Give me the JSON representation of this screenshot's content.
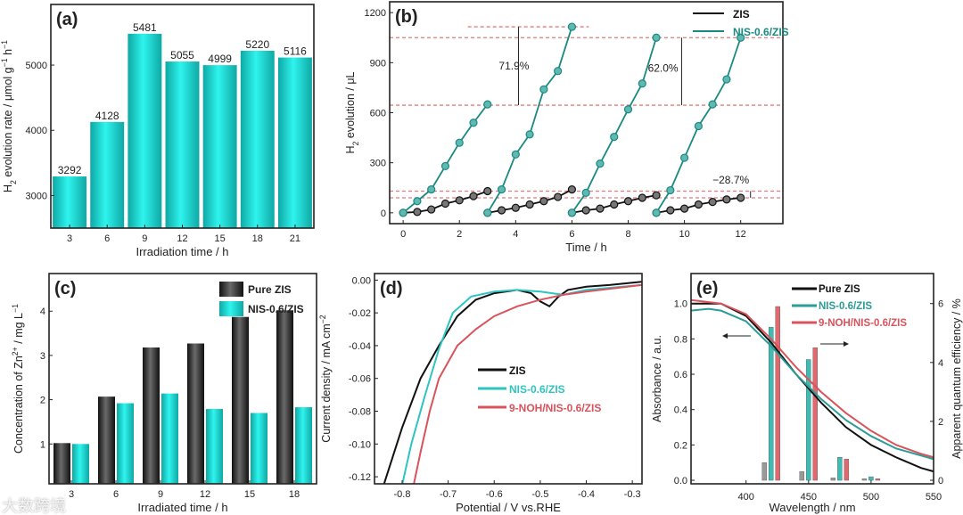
{
  "watermark": "大数跨境",
  "chart_data": [
    {
      "id": "a",
      "type": "bar",
      "panel_label": "(a)",
      "categories": [
        "3",
        "6",
        "9",
        "12",
        "15",
        "18",
        "21"
      ],
      "values": [
        3292,
        4128,
        5481,
        5055,
        4999,
        5220,
        5116
      ],
      "data_labels": [
        "3292",
        "4128",
        "5481",
        "5055",
        "4999",
        "5220",
        "5116"
      ],
      "xlabel": "Irradiation time / h",
      "ylabel": [
        [
          "H",
          ""
        ],
        [
          "2",
          "sub"
        ],
        [
          " evolution rate / μmol g",
          ""
        ],
        [
          "−1",
          "sup"
        ],
        [
          " h",
          ""
        ],
        [
          "−1",
          "sup"
        ]
      ],
      "ylim": [
        2500,
        5930
      ],
      "yticks": [
        3000,
        4000,
        5000
      ],
      "color": "#19e6e0"
    },
    {
      "id": "b",
      "type": "line",
      "panel_label": "(b)",
      "xlabel": "Time / h",
      "ylabel": [
        [
          "H",
          ""
        ],
        [
          "2",
          "sub"
        ],
        [
          " evolution / μL",
          ""
        ]
      ],
      "xlim": [
        -0.48,
        13.5
      ],
      "ylim": [
        -65,
        1265
      ],
      "xticks": [
        0,
        2,
        4,
        6,
        8,
        10,
        12
      ],
      "yticks": [
        0,
        300,
        600,
        900,
        1200
      ],
      "series": [
        {
          "name": "ZIS",
          "color": "#111111",
          "cycles": [
            {
              "x": [
                0,
                0.5,
                1,
                1.5,
                2,
                2.5,
                3
              ],
              "y": [
                0,
                5,
                20,
                55,
                75,
                100,
                130
              ]
            },
            {
              "x": [
                3,
                3.5,
                4,
                4.5,
                5,
                5.5,
                6
              ],
              "y": [
                0,
                15,
                30,
                50,
                70,
                95,
                140
              ]
            },
            {
              "x": [
                6,
                6.5,
                7,
                7.5,
                8,
                8.5,
                9
              ],
              "y": [
                0,
                15,
                25,
                50,
                70,
                90,
                105
              ]
            },
            {
              "x": [
                9,
                9.5,
                10,
                10.5,
                11,
                11.5,
                12
              ],
              "y": [
                0,
                15,
                25,
                50,
                65,
                80,
                90
              ]
            }
          ]
        },
        {
          "name": "NIS-0.6/ZIS",
          "color": "#1a8a80",
          "cycles": [
            {
              "x": [
                0,
                0.5,
                1,
                1.5,
                2,
                2.5,
                3
              ],
              "y": [
                0,
                70,
                140,
                280,
                420,
                540,
                650
              ]
            },
            {
              "x": [
                3,
                3.5,
                4,
                4.5,
                5,
                5.5,
                6
              ],
              "y": [
                0,
                140,
                350,
                470,
                740,
                850,
                1115
              ]
            },
            {
              "x": [
                6,
                6.5,
                7,
                7.5,
                8,
                8.5,
                9
              ],
              "y": [
                0,
                120,
                295,
                455,
                620,
                775,
                1050
              ]
            },
            {
              "x": [
                9,
                9.5,
                10,
                10.5,
                11,
                11.5,
                12
              ],
              "y": [
                0,
                135,
                330,
                520,
                650,
                800,
                1050
              ]
            }
          ]
        }
      ],
      "reference_lines": [
        {
          "y": 1115,
          "x": [
            2.3,
            6.6
          ]
        },
        {
          "y": 1050
        },
        {
          "y": 645
        },
        {
          "y": 130
        },
        {
          "y": 90
        }
      ],
      "annotations": [
        {
          "text": "71.9%",
          "x": 3.4,
          "y": 860,
          "arrow_x": 4.1,
          "from": 1115,
          "to": 645
        },
        {
          "text": "62.0%",
          "x": 8.7,
          "y": 845,
          "arrow_x": 9.9,
          "from": 1050,
          "to": 645
        },
        {
          "text": "−28.7%",
          "x": 11.0,
          "y": 175,
          "arrow_x": 12.35,
          "from": 130,
          "to": 90
        }
      ]
    },
    {
      "id": "c",
      "type": "bar",
      "panel_label": "(c)",
      "categories": [
        "3",
        "6",
        "9",
        "12",
        "15",
        "18"
      ],
      "series": [
        {
          "name": "Pure ZIS",
          "color": "#2a2a2a",
          "values": [
            1.02,
            2.07,
            3.18,
            3.27,
            3.87,
            4.02
          ]
        },
        {
          "name": "NIS-0.6/ZIS",
          "color": "#19e6e0",
          "values": [
            1.0,
            1.92,
            2.14,
            1.79,
            1.7,
            1.83
          ]
        }
      ],
      "xlabel": "Irradiated time / h",
      "ylabel": [
        [
          "Concentration of Zn",
          ""
        ],
        [
          "2+",
          "sup"
        ],
        [
          " / mg L",
          ""
        ],
        [
          "−1",
          "sup"
        ]
      ],
      "ylim": [
        0.1,
        4.85
      ],
      "yticks": [
        1,
        2,
        3,
        4
      ]
    },
    {
      "id": "d",
      "type": "line",
      "panel_label": "(d)",
      "xlabel": "Potential / V vs.RHE",
      "ylabel": [
        [
          "Current density / mA cm",
          ""
        ],
        [
          "−2",
          "sup"
        ]
      ],
      "xlim": [
        -0.86,
        -0.279
      ],
      "ylim": [
        -0.1243,
        0.004
      ],
      "xticks": [
        -0.8,
        -0.7,
        -0.6,
        -0.5,
        -0.4,
        -0.3
      ],
      "xtick_labels": [
        "-0.8",
        "-0.7",
        "-0.6",
        "-0.5",
        "-0.4",
        "-0.3"
      ],
      "yticks": [
        0,
        -0.02,
        -0.04,
        -0.06,
        -0.08,
        -0.1,
        -0.12
      ],
      "ytick_labels": [
        "0.00",
        "-0.02",
        "-0.04",
        "-0.06",
        "-0.08",
        "-0.10",
        "-0.12"
      ],
      "series": [
        {
          "name": "ZIS",
          "color": "#111111",
          "x": [
            -0.84,
            -0.8,
            -0.76,
            -0.72,
            -0.68,
            -0.64,
            -0.6,
            -0.55,
            -0.52,
            -0.5,
            -0.48,
            -0.46,
            -0.44,
            -0.4,
            -0.35,
            -0.28
          ],
          "y": [
            -0.125,
            -0.09,
            -0.06,
            -0.04,
            -0.022,
            -0.012,
            -0.008,
            -0.006,
            -0.008,
            -0.013,
            -0.016,
            -0.01,
            -0.006,
            -0.004,
            -0.003,
            -0.001
          ]
        },
        {
          "name": "NIS-0.6/ZIS",
          "color": "#2ec4c0",
          "x": [
            -0.8,
            -0.78,
            -0.75,
            -0.72,
            -0.69,
            -0.65,
            -0.6,
            -0.55,
            -0.5,
            -0.45,
            -0.4,
            -0.28
          ],
          "y": [
            -0.125,
            -0.1,
            -0.07,
            -0.042,
            -0.02,
            -0.01,
            -0.007,
            -0.006,
            -0.007,
            -0.009,
            -0.006,
            -0.003
          ]
        },
        {
          "name": "9-NOH/NIS-0.6/ZIS",
          "color": "#d9535c",
          "x": [
            -0.775,
            -0.76,
            -0.74,
            -0.72,
            -0.68,
            -0.64,
            -0.6,
            -0.55,
            -0.5,
            -0.45,
            -0.4,
            -0.28
          ],
          "y": [
            -0.125,
            -0.105,
            -0.08,
            -0.06,
            -0.04,
            -0.03,
            -0.022,
            -0.016,
            -0.012,
            -0.009,
            -0.007,
            -0.003
          ]
        }
      ]
    },
    {
      "id": "e",
      "type": "line+bar",
      "panel_label": "(e)",
      "xlabel": "Wavelength / nm",
      "ylabel": [
        [
          "Absorbance / a.u.",
          ""
        ]
      ],
      "ylabel_right": [
        [
          "Apparent quantum efficiency / %",
          ""
        ]
      ],
      "xlim": [
        356,
        550
      ],
      "ylim": [
        -0.02,
        1.17
      ],
      "ylim_right": [
        -0.12,
        7.02
      ],
      "xticks": [
        400,
        450,
        500,
        550
      ],
      "yticks": [
        0,
        0.2,
        0.4,
        0.6,
        0.8,
        1.0
      ],
      "ytick_labels": [
        "0.0",
        "0.2",
        "0.4",
        "0.6",
        "0.8",
        "1.0"
      ],
      "yticks_right": [
        0,
        2,
        4,
        6
      ],
      "series": [
        {
          "name": "Pure ZIS",
          "color": "#111111",
          "x": [
            356,
            380,
            400,
            420,
            440,
            460,
            480,
            500,
            520,
            540,
            550
          ],
          "y": [
            1.0,
            1.0,
            0.93,
            0.78,
            0.6,
            0.44,
            0.3,
            0.2,
            0.13,
            0.07,
            0.05
          ]
        },
        {
          "name": "NIS-0.6/ZIS",
          "color": "#2a9d96",
          "x": [
            356,
            370,
            380,
            400,
            420,
            440,
            460,
            480,
            500,
            520,
            540,
            550
          ],
          "y": [
            0.96,
            0.97,
            0.96,
            0.9,
            0.76,
            0.6,
            0.46,
            0.34,
            0.25,
            0.18,
            0.14,
            0.12
          ]
        },
        {
          "name": "9-NOH/NIS-0.6/ZIS",
          "color": "#d9535c",
          "x": [
            356,
            380,
            400,
            420,
            440,
            460,
            480,
            500,
            520,
            540,
            550
          ],
          "y": [
            1.02,
            1.0,
            0.94,
            0.8,
            0.64,
            0.5,
            0.38,
            0.28,
            0.2,
            0.15,
            0.13
          ]
        }
      ],
      "aqe_bars": {
        "wavelengths": [
          420,
          450,
          475,
          500
        ],
        "series": [
          {
            "name": "Pure ZIS",
            "color": "#9a9a9a",
            "values": [
              0.6,
              0.3,
              0.08,
              0.05
            ]
          },
          {
            "name": "NIS-0.6/ZIS",
            "color": "#3bbdb5",
            "values": [
              5.2,
              4.1,
              0.78,
              0.12
            ]
          },
          {
            "name": "9-NOH/NIS-0.6/ZIS",
            "color": "#e0686f",
            "values": [
              5.9,
              4.5,
              0.72,
              0.05
            ]
          }
        ]
      }
    }
  ]
}
